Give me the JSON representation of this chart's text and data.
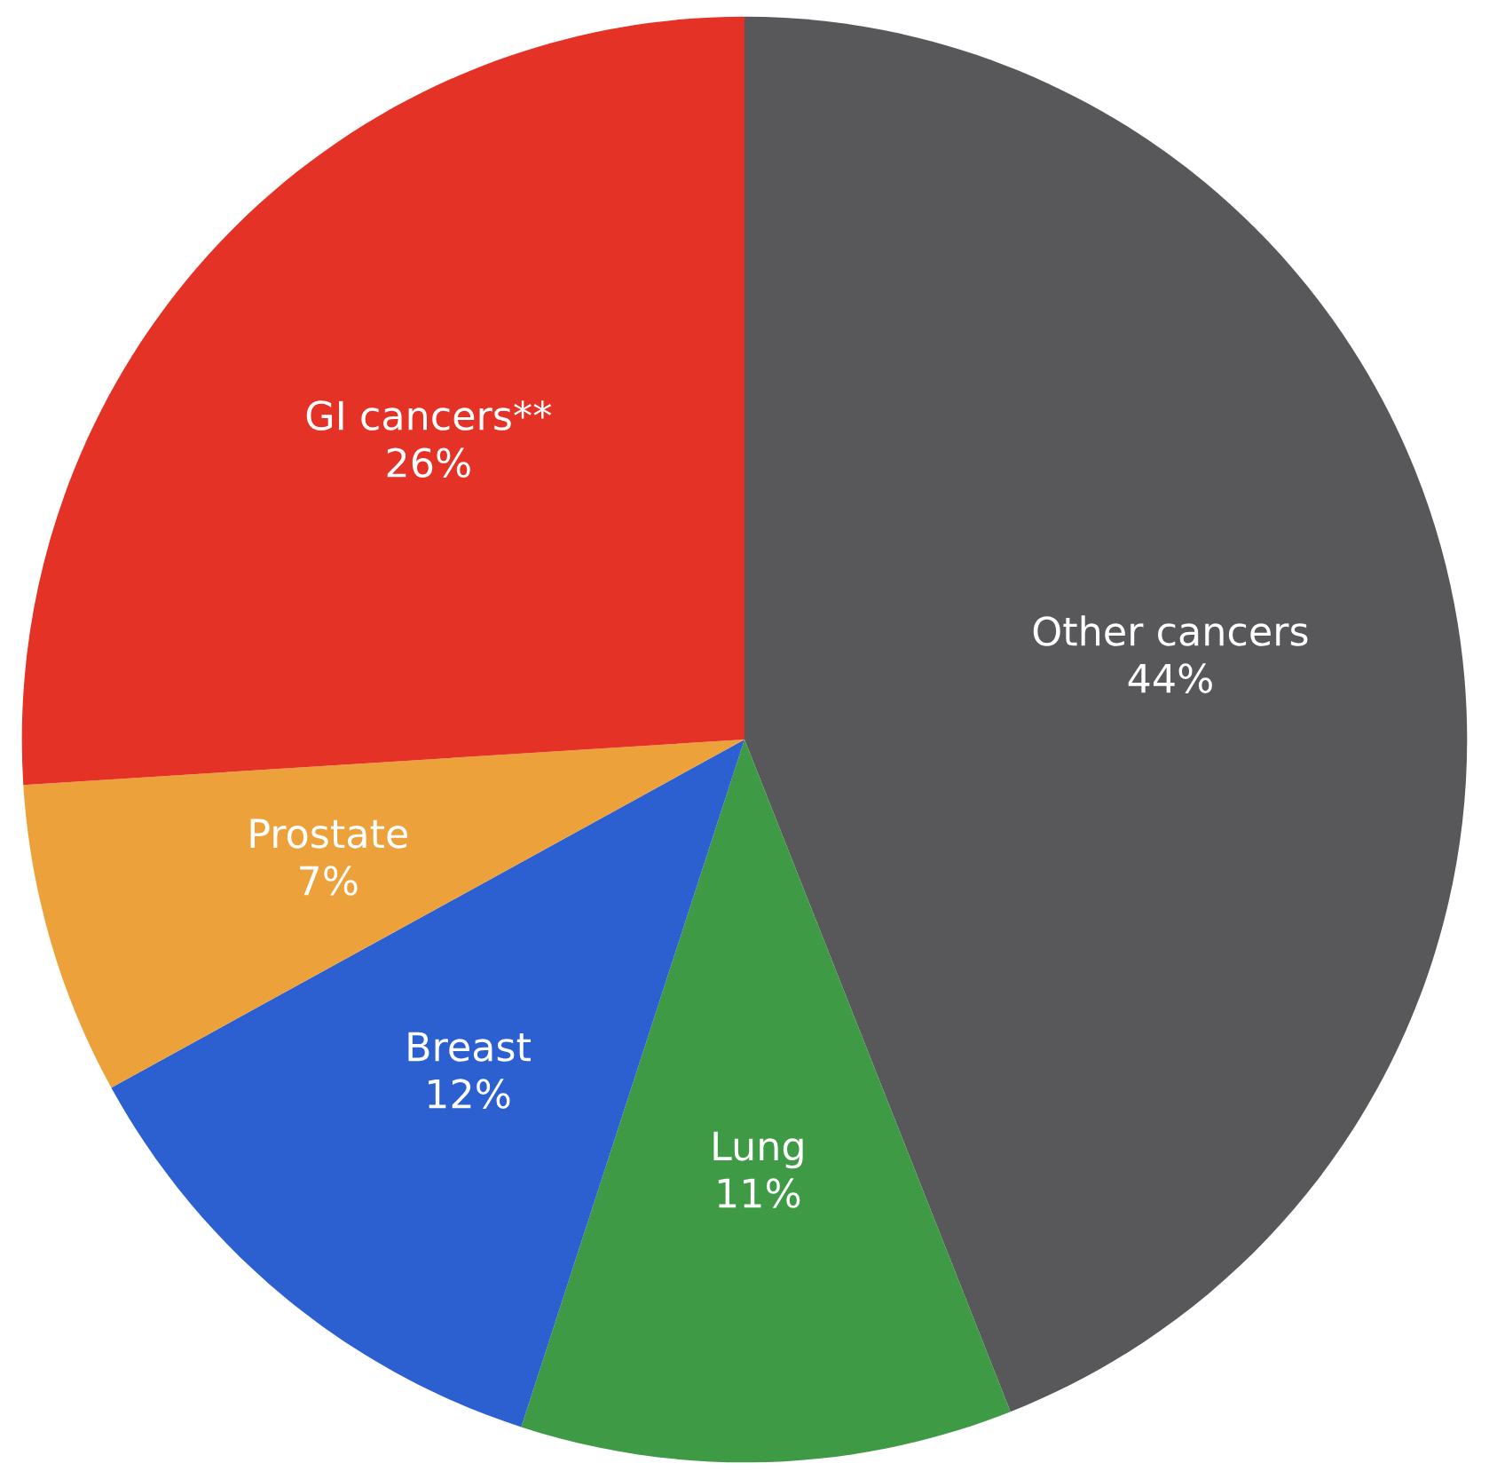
{
  "chart_data": {
    "type": "pie",
    "categories": [
      "Other cancers",
      "Lung",
      "Breast",
      "Prostate",
      "GI cancers**"
    ],
    "values": [
      44,
      11,
      12,
      7,
      26
    ],
    "value_labels": [
      "44%",
      "11%",
      "12%",
      "7%",
      "26%"
    ],
    "colors": [
      "#58585a",
      "#3f9a45",
      "#2c5fd0",
      "#eda13a",
      "#e53226"
    ]
  }
}
